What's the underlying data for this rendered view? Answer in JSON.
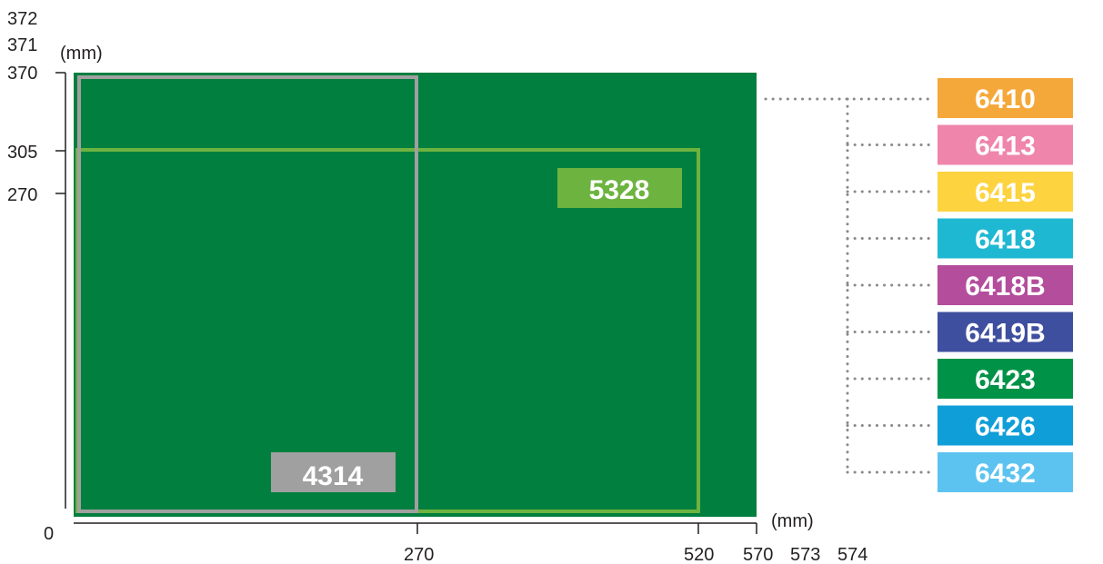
{
  "unit_label_y": "(mm)",
  "unit_label_x": "(mm)",
  "y_labels": [
    "372",
    "371",
    "370",
    "305",
    "270",
    "0"
  ],
  "x_labels": [
    "270",
    "520",
    "570",
    "573",
    "574"
  ],
  "regions": [
    {
      "label": "4314",
      "color": "#a0a0a0",
      "width_mm": 270,
      "height_mm": 370
    },
    {
      "label": "5328",
      "color": "#6db33f",
      "width_mm": 520,
      "height_mm": 305
    }
  ],
  "background_color": "#007f3f",
  "models": [
    {
      "label": "6410",
      "color": "#f5a83a"
    },
    {
      "label": "6413",
      "color": "#ef85ab"
    },
    {
      "label": "6415",
      "color": "#fdd33f"
    },
    {
      "label": "6418",
      "color": "#1fb8d2"
    },
    {
      "label": "6418B",
      "color": "#b34d9c"
    },
    {
      "label": "6419B",
      "color": "#3f4f9f"
    },
    {
      "label": "6423",
      "color": "#009246"
    },
    {
      "label": "6426",
      "color": "#109ed9"
    },
    {
      "label": "6432",
      "color": "#5cc3f0"
    }
  ]
}
